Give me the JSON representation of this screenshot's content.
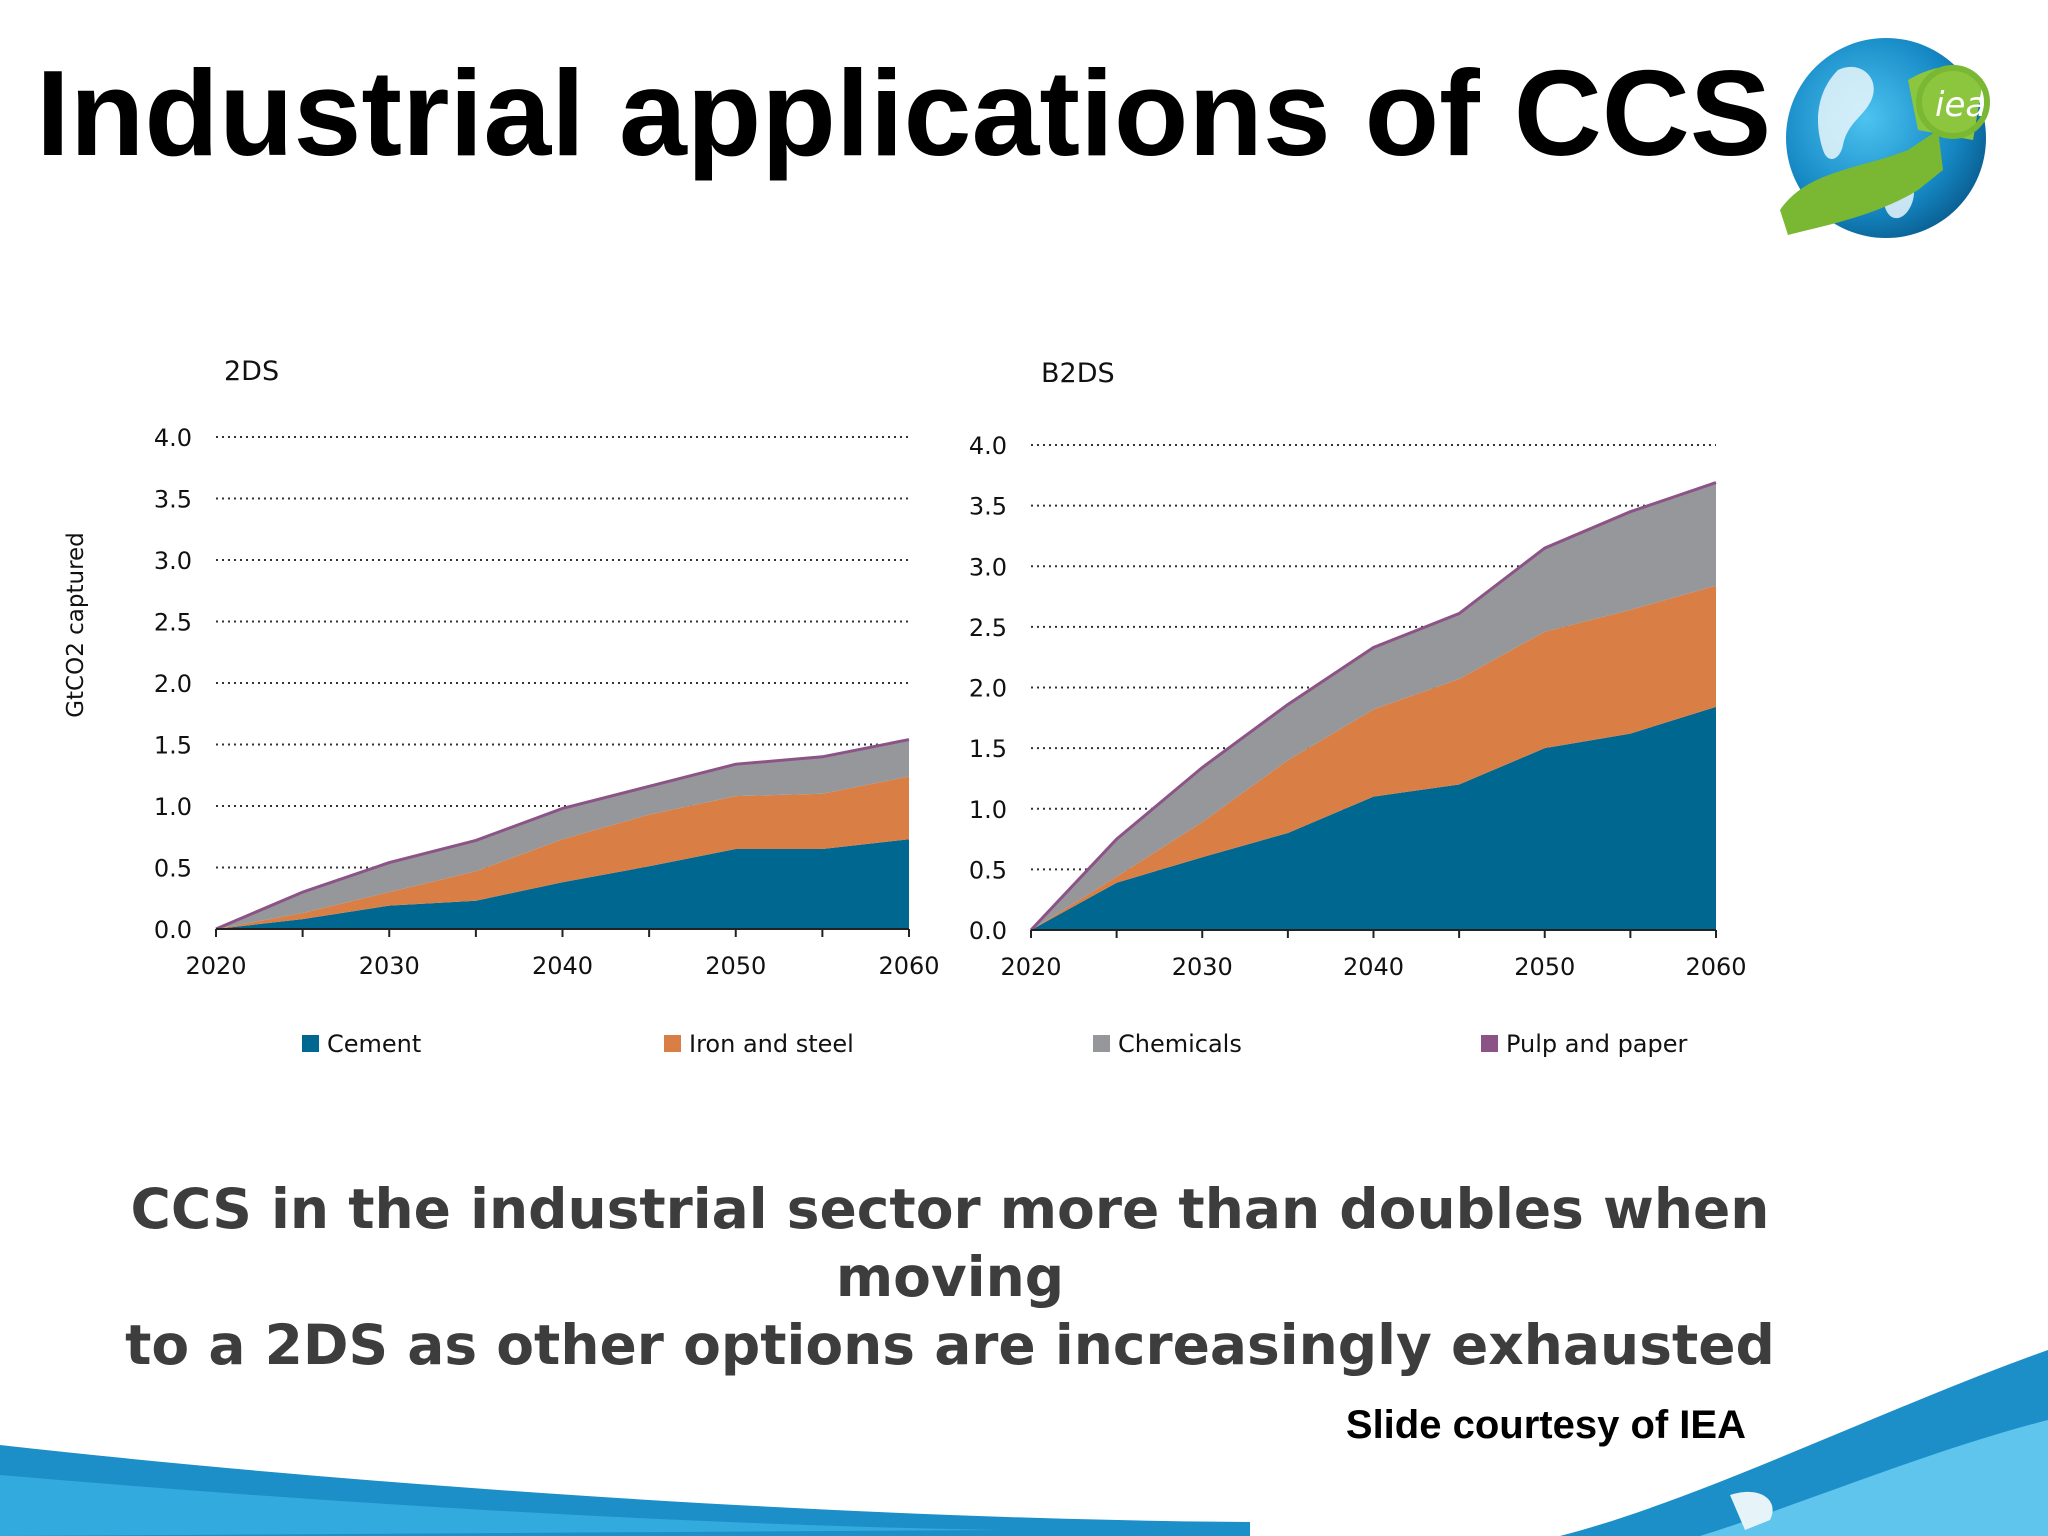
{
  "slide": {
    "title": "Industrial applications of CCS",
    "subtitle_line1": "CCS in the industrial sector more than doubles when moving",
    "subtitle_line2": "to a 2DS as other options are increasingly exhausted",
    "credit": "Slide courtesy of IEA",
    "logo_text": "iea"
  },
  "colors": {
    "cement": "#006890",
    "iron_steel": "#d97f45",
    "chemicals": "#96979b",
    "pulp_paper": "#8c5486",
    "brand_blue": "#1a9ad2",
    "brand_green": "#7ab833"
  },
  "chart_data": [
    {
      "type": "area",
      "stacked": true,
      "title": "2DS",
      "ylabel": "GtCO2 captured",
      "x": [
        2020,
        2025,
        2030,
        2035,
        2040,
        2045,
        2050,
        2055,
        2060
      ],
      "ylim": [
        0,
        4
      ],
      "yticks": [
        "0.0",
        "0.5",
        "1.0",
        "1.5",
        "2.0",
        "2.5",
        "3.0",
        "3.5",
        "4.0"
      ],
      "xticks": [
        "2020",
        "2030",
        "2040",
        "2050",
        "2060"
      ],
      "grid": "dotted horizontal",
      "series": [
        {
          "name": "Cement",
          "values": [
            0,
            0.08,
            0.19,
            0.23,
            0.38,
            0.51,
            0.65,
            0.65,
            0.73
          ]
        },
        {
          "name": "Iron and steel",
          "values": [
            0,
            0.05,
            0.11,
            0.24,
            0.35,
            0.42,
            0.43,
            0.45,
            0.51
          ]
        },
        {
          "name": "Chemicals",
          "values": [
            0,
            0.16,
            0.23,
            0.24,
            0.24,
            0.22,
            0.25,
            0.29,
            0.29
          ]
        },
        {
          "name": "Pulp and paper",
          "values": [
            0,
            0.01,
            0.01,
            0.01,
            0.01,
            0.01,
            0.01,
            0.01,
            0.01
          ]
        }
      ]
    },
    {
      "type": "area",
      "stacked": true,
      "title": "B2DS",
      "x": [
        2020,
        2025,
        2030,
        2035,
        2040,
        2045,
        2050,
        2055,
        2060
      ],
      "ylim": [
        0,
        4
      ],
      "yticks": [
        "0.0",
        "0.5",
        "1.0",
        "1.5",
        "2.0",
        "2.5",
        "3.0",
        "3.5",
        "4.0"
      ],
      "xticks": [
        "2020",
        "2030",
        "2040",
        "2050",
        "2060"
      ],
      "grid": "dotted horizontal",
      "series": [
        {
          "name": "Cement",
          "values": [
            0,
            0.39,
            0.6,
            0.8,
            1.1,
            1.2,
            1.5,
            1.62,
            1.84
          ]
        },
        {
          "name": "Iron and steel",
          "values": [
            0,
            0.05,
            0.29,
            0.6,
            0.72,
            0.87,
            0.96,
            1.02,
            1.0
          ]
        },
        {
          "name": "Chemicals",
          "values": [
            0,
            0.3,
            0.44,
            0.45,
            0.5,
            0.53,
            0.68,
            0.8,
            0.84
          ]
        },
        {
          "name": "Pulp and paper",
          "values": [
            0,
            0.01,
            0.01,
            0.01,
            0.01,
            0.01,
            0.01,
            0.01,
            0.01
          ]
        }
      ]
    }
  ],
  "legend": [
    {
      "name": "Cement",
      "color": "#006890"
    },
    {
      "name": "Iron and steel",
      "color": "#d97f45"
    },
    {
      "name": "Chemicals",
      "color": "#96979b"
    },
    {
      "name": "Pulp and paper",
      "color": "#8c5486"
    }
  ]
}
